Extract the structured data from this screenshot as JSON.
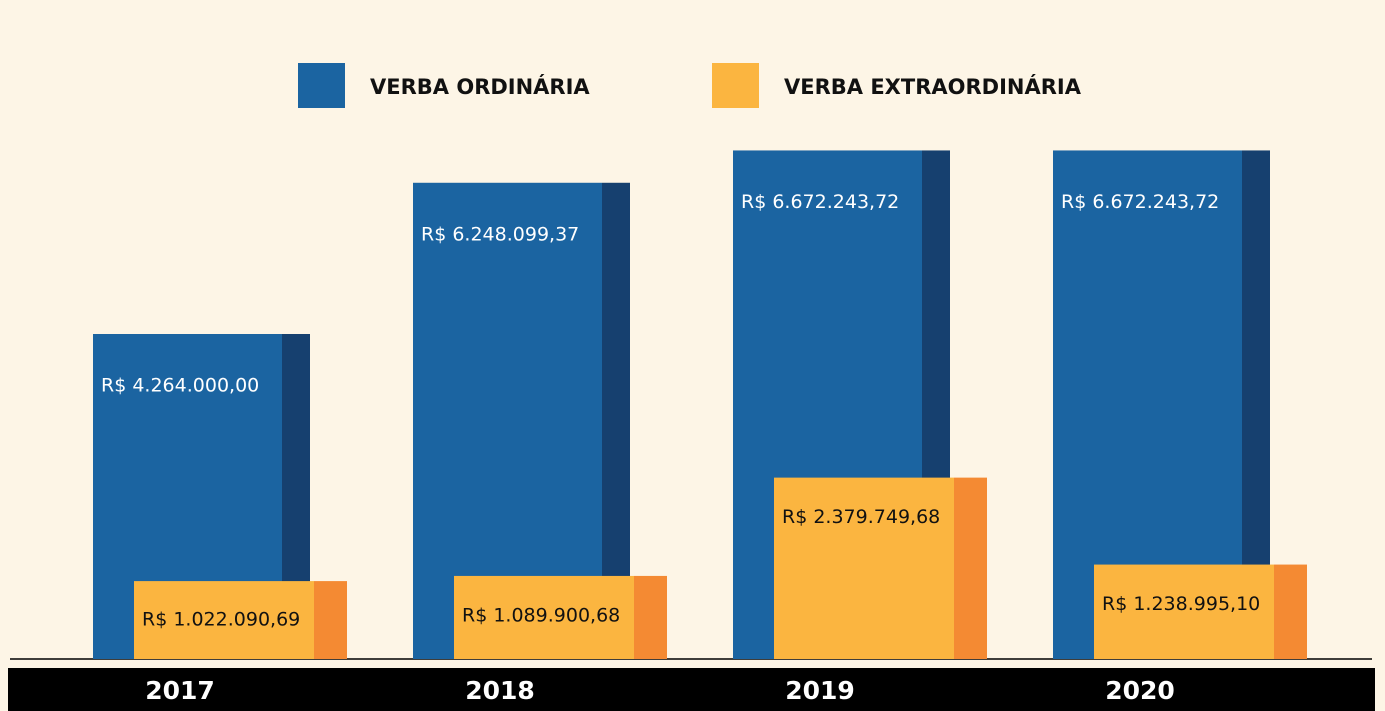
{
  "chart_data": {
    "type": "bar",
    "categories": [
      "2017",
      "2018",
      "2019",
      "2020"
    ],
    "series": [
      {
        "name": "VERBA ORDINÁRIA",
        "color": "#1b64a1",
        "side_color": "#16406f",
        "values": [
          4264000.0,
          6248099.37,
          6672243.72,
          6672243.72
        ],
        "value_labels": [
          "R$ 4.264.000,00",
          "R$ 6.248.099,37",
          "R$ 6.672.243,72",
          "R$ 6.672.243,72"
        ]
      },
      {
        "name": "VERBA EXTRAORDINÁRIA",
        "color": "#fbb540",
        "side_color": "#f48a33",
        "values": [
          1022090.69,
          1089900.68,
          2379749.68,
          1238995.1
        ],
        "value_labels": [
          "R$ 1.022.090,69",
          "R$ 1.089.900,68",
          "R$ 2.379.749,68",
          "R$ 1.238.995,10"
        ]
      }
    ]
  }
}
